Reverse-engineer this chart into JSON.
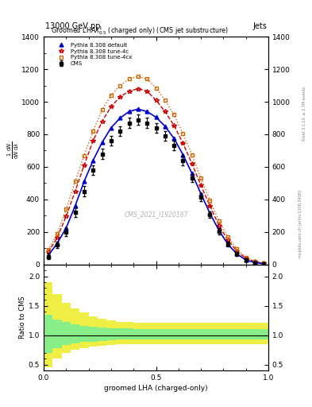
{
  "title_top": "13000 GeV pp",
  "title_right": "Jets",
  "watermark": "CMS_2021_I1920187",
  "xlabel": "groomed LHA (charged-only)",
  "ylabel_ratio": "Ratio to CMS",
  "right_label": "mcplots.cern.ch [arXiv:1306.3436]",
  "rivet_label": "Rivet 3.1.10, ≥ 2.7M events",
  "x_bins": [
    0.0,
    0.04,
    0.08,
    0.12,
    0.16,
    0.2,
    0.24,
    0.28,
    0.32,
    0.36,
    0.4,
    0.44,
    0.48,
    0.52,
    0.56,
    0.6,
    0.64,
    0.68,
    0.72,
    0.76,
    0.8,
    0.84,
    0.88,
    0.92,
    0.96,
    1.0
  ],
  "cms_y": [
    50,
    120,
    200,
    320,
    450,
    580,
    680,
    760,
    820,
    870,
    890,
    870,
    840,
    790,
    730,
    640,
    530,
    415,
    305,
    205,
    125,
    65,
    28,
    10,
    5
  ],
  "cms_yerr": [
    15,
    20,
    25,
    30,
    30,
    30,
    30,
    30,
    30,
    30,
    30,
    30,
    30,
    30,
    30,
    30,
    25,
    25,
    20,
    18,
    15,
    12,
    8,
    5,
    3
  ],
  "pythia_default_y": [
    55,
    130,
    225,
    360,
    510,
    640,
    750,
    840,
    900,
    940,
    955,
    940,
    905,
    850,
    775,
    675,
    560,
    435,
    315,
    210,
    125,
    65,
    28,
    12,
    5
  ],
  "pythia_4c_y": [
    75,
    165,
    295,
    450,
    610,
    760,
    880,
    970,
    1030,
    1065,
    1080,
    1065,
    1010,
    940,
    855,
    745,
    620,
    485,
    360,
    240,
    150,
    82,
    38,
    18,
    7
  ],
  "pythia_4cx_y": [
    90,
    190,
    340,
    510,
    670,
    820,
    950,
    1040,
    1100,
    1140,
    1155,
    1140,
    1085,
    1010,
    920,
    805,
    675,
    530,
    395,
    270,
    170,
    95,
    45,
    20,
    8
  ],
  "ylim_main": [
    0,
    1400
  ],
  "yticks_main": [
    0,
    200,
    400,
    600,
    800,
    1000,
    1200,
    1400
  ],
  "ylim_ratio": [
    0.4,
    2.2
  ],
  "yticks_ratio": [
    0.5,
    1.0,
    1.5,
    2.0
  ],
  "cms_color": "#000000",
  "pythia_default_color": "#0000cc",
  "pythia_4c_color": "#cc0000",
  "pythia_4cx_color": "#cc6600",
  "ratio_green_color": "#88ee88",
  "ratio_yellow_color": "#eeee44",
  "yellow_lo": [
    0.45,
    0.6,
    0.7,
    0.75,
    0.78,
    0.8,
    0.82,
    0.83,
    0.84,
    0.85,
    0.85,
    0.85,
    0.85,
    0.85,
    0.85,
    0.85,
    0.85,
    0.85,
    0.85,
    0.85,
    0.85,
    0.85,
    0.85,
    0.85,
    0.85
  ],
  "yellow_hi": [
    1.9,
    1.7,
    1.55,
    1.45,
    1.38,
    1.32,
    1.28,
    1.25,
    1.23,
    1.22,
    1.21,
    1.21,
    1.21,
    1.21,
    1.21,
    1.21,
    1.21,
    1.21,
    1.21,
    1.21,
    1.21,
    1.21,
    1.21,
    1.21,
    1.21
  ],
  "green_lo": [
    0.7,
    0.78,
    0.83,
    0.86,
    0.88,
    0.89,
    0.9,
    0.91,
    0.92,
    0.92,
    0.92,
    0.92,
    0.92,
    0.92,
    0.92,
    0.92,
    0.92,
    0.92,
    0.92,
    0.92,
    0.92,
    0.92,
    0.92,
    0.92,
    0.92
  ],
  "green_hi": [
    1.35,
    1.27,
    1.22,
    1.18,
    1.16,
    1.14,
    1.13,
    1.12,
    1.11,
    1.11,
    1.1,
    1.1,
    1.1,
    1.1,
    1.1,
    1.1,
    1.1,
    1.1,
    1.1,
    1.1,
    1.1,
    1.1,
    1.1,
    1.1,
    1.1
  ]
}
